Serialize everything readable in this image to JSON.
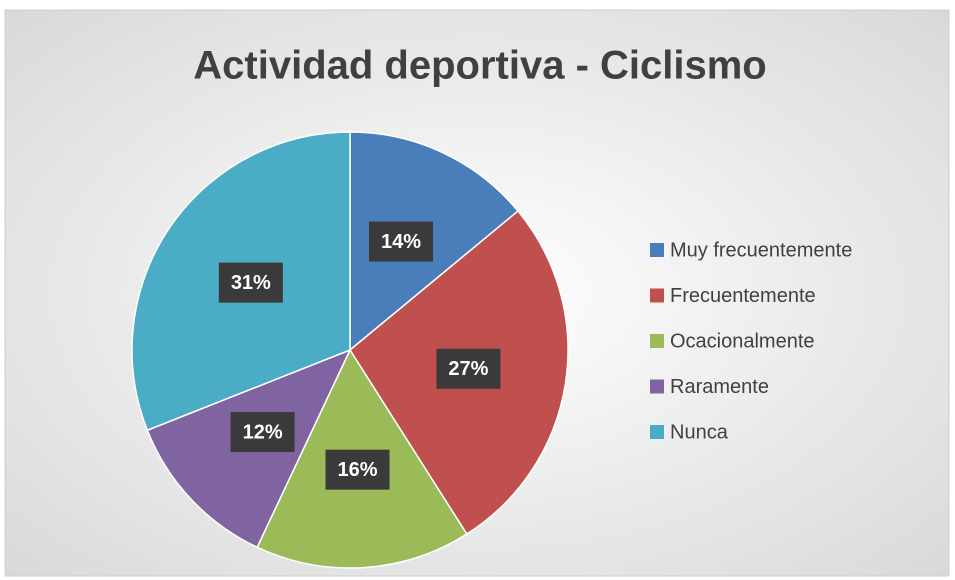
{
  "chart_data": {
    "type": "pie",
    "title": "Actividad deportiva - Ciclismo",
    "categories": [
      "Muy frecuentemente",
      "Frecuentemente",
      "Ocacionalmente",
      "Raramente",
      "Nunca"
    ],
    "values": [
      14,
      27,
      16,
      12,
      31
    ],
    "value_labels": [
      "14%",
      "27%",
      "16%",
      "12%",
      "31%"
    ],
    "colors": [
      "#4a7ebb",
      "#c0504d",
      "#9bbb59",
      "#8064a2",
      "#4bacc6"
    ],
    "legend": "right"
  }
}
